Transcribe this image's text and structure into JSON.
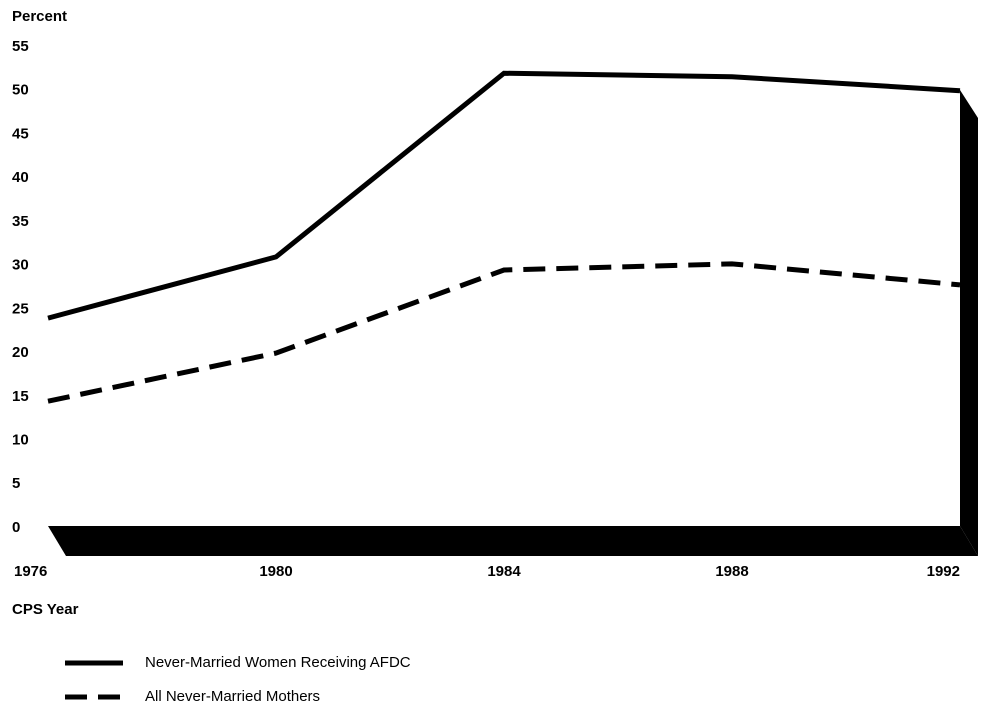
{
  "chart_data": {
    "type": "line",
    "y_label": "Percent",
    "x_label": "CPS Year",
    "x": [
      1976,
      1980,
      1984,
      1988,
      1992
    ],
    "xlim": [
      1976,
      1992
    ],
    "xticks": [
      1976,
      1980,
      1984,
      1988,
      1992
    ],
    "ylim": [
      0,
      55
    ],
    "yticks": [
      0,
      5,
      10,
      15,
      20,
      25,
      30,
      35,
      40,
      45,
      50,
      55
    ],
    "series": [
      {
        "name": "Never-Married Women Receiving AFDC",
        "color": "#000000",
        "dash": false,
        "values": [
          24,
          31,
          52,
          51.6,
          50
        ]
      },
      {
        "name": "All Never-Married Mothers",
        "color": "#000000",
        "dash": true,
        "values": [
          14.5,
          20,
          29.5,
          30.2,
          27.8
        ]
      }
    ]
  }
}
